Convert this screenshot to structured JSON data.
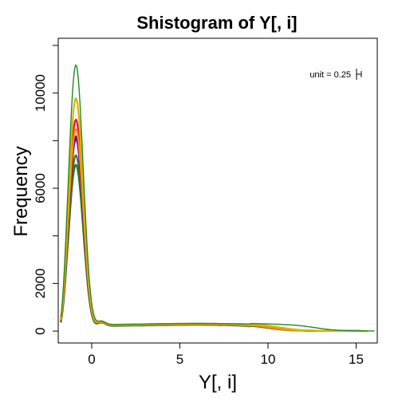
{
  "chart_data": {
    "type": "line",
    "title": "Shistogram of Y[, i]",
    "xlabel": "Y[, i]",
    "ylabel": "Frequency",
    "xlim": [
      -1.9,
      16.2
    ],
    "ylim": [
      -500,
      12300
    ],
    "xticks": [
      0,
      5,
      10,
      15
    ],
    "yticks_labeled": [
      0,
      2000,
      6000,
      10000
    ],
    "yticks_all": [
      0,
      2000,
      4000,
      6000,
      8000,
      10000,
      12000
    ],
    "annotation": "unit = 0.25",
    "grid": false,
    "legend": "none",
    "series": [
      {
        "color": "#1a7a1a",
        "peak": 7000,
        "shoulder": 210,
        "mid": 210,
        "tailEnd": 12.5
      },
      {
        "color": "#556b2f",
        "peak": 7400,
        "shoulder": 200,
        "mid": 200,
        "tailEnd": 12.5
      },
      {
        "color": "#0000cd",
        "peak": 8100,
        "shoulder": 220,
        "mid": 230,
        "tailEnd": 12.8
      },
      {
        "color": "#8b008b",
        "peak": 8200,
        "shoulder": 220,
        "mid": 230,
        "tailEnd": 12.8
      },
      {
        "color": "#dc143c",
        "peak": 8900,
        "shoulder": 230,
        "mid": 240,
        "tailEnd": 13.0
      },
      {
        "color": "#ff8c00",
        "peak": 8500,
        "shoulder": 220,
        "mid": 230,
        "tailEnd": 12.6
      },
      {
        "color": "#d4b800",
        "peak": 9800,
        "shoulder": 240,
        "mid": 250,
        "tailEnd": 13.2
      },
      {
        "color": "#228b22",
        "peak": 11200,
        "shoulder": 250,
        "mid": 260,
        "tailEnd": 15.2
      }
    ]
  }
}
